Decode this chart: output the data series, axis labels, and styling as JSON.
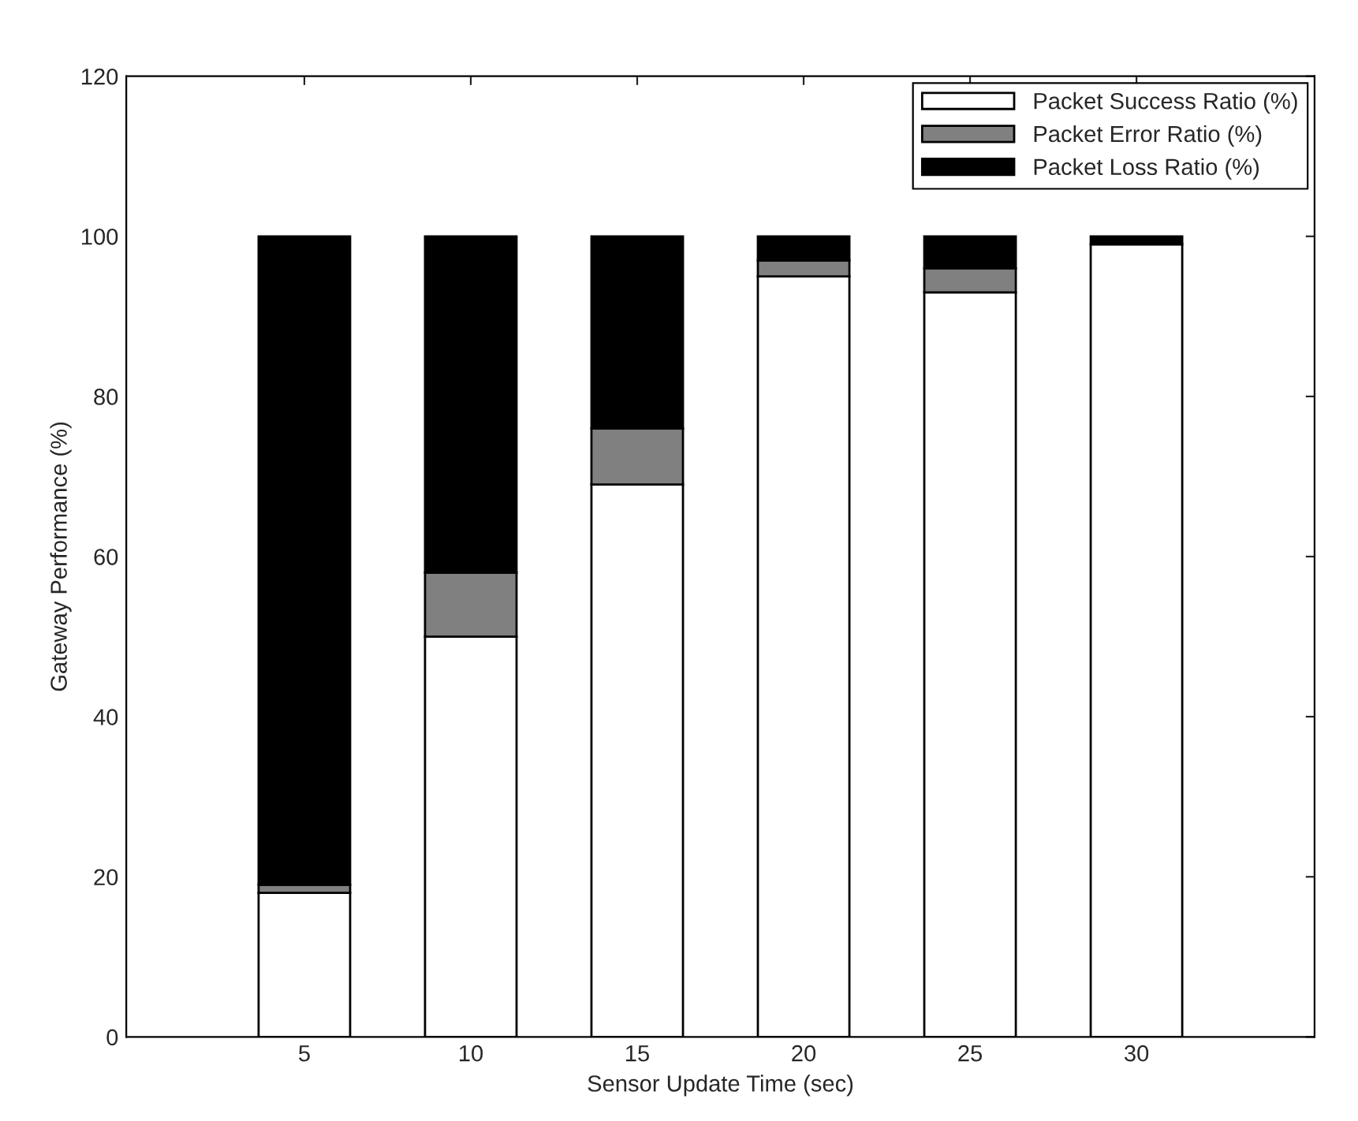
{
  "chart_data": {
    "type": "bar",
    "stacked": true,
    "xlabel": "Sensor Update Time (sec)",
    "ylabel": "Gateway Performance (%)",
    "categories": [
      "5",
      "10",
      "15",
      "20",
      "25",
      "30"
    ],
    "series": [
      {
        "name": "Packet Success Ratio (%)",
        "color": "#ffffff",
        "values": [
          18,
          50,
          69,
          95,
          93,
          99
        ]
      },
      {
        "name": "Packet Error Ratio (%)",
        "color": "#808080",
        "values": [
          1,
          8,
          7,
          2,
          3,
          0
        ]
      },
      {
        "name": "Packet Loss Ratio (%)",
        "color": "#000000",
        "values": [
          81,
          42,
          24,
          3,
          4,
          1
        ]
      }
    ],
    "ylim": [
      0,
      120
    ],
    "yticks": [
      0,
      20,
      40,
      60,
      80,
      100,
      120
    ],
    "legend": "top right",
    "grid": false
  }
}
